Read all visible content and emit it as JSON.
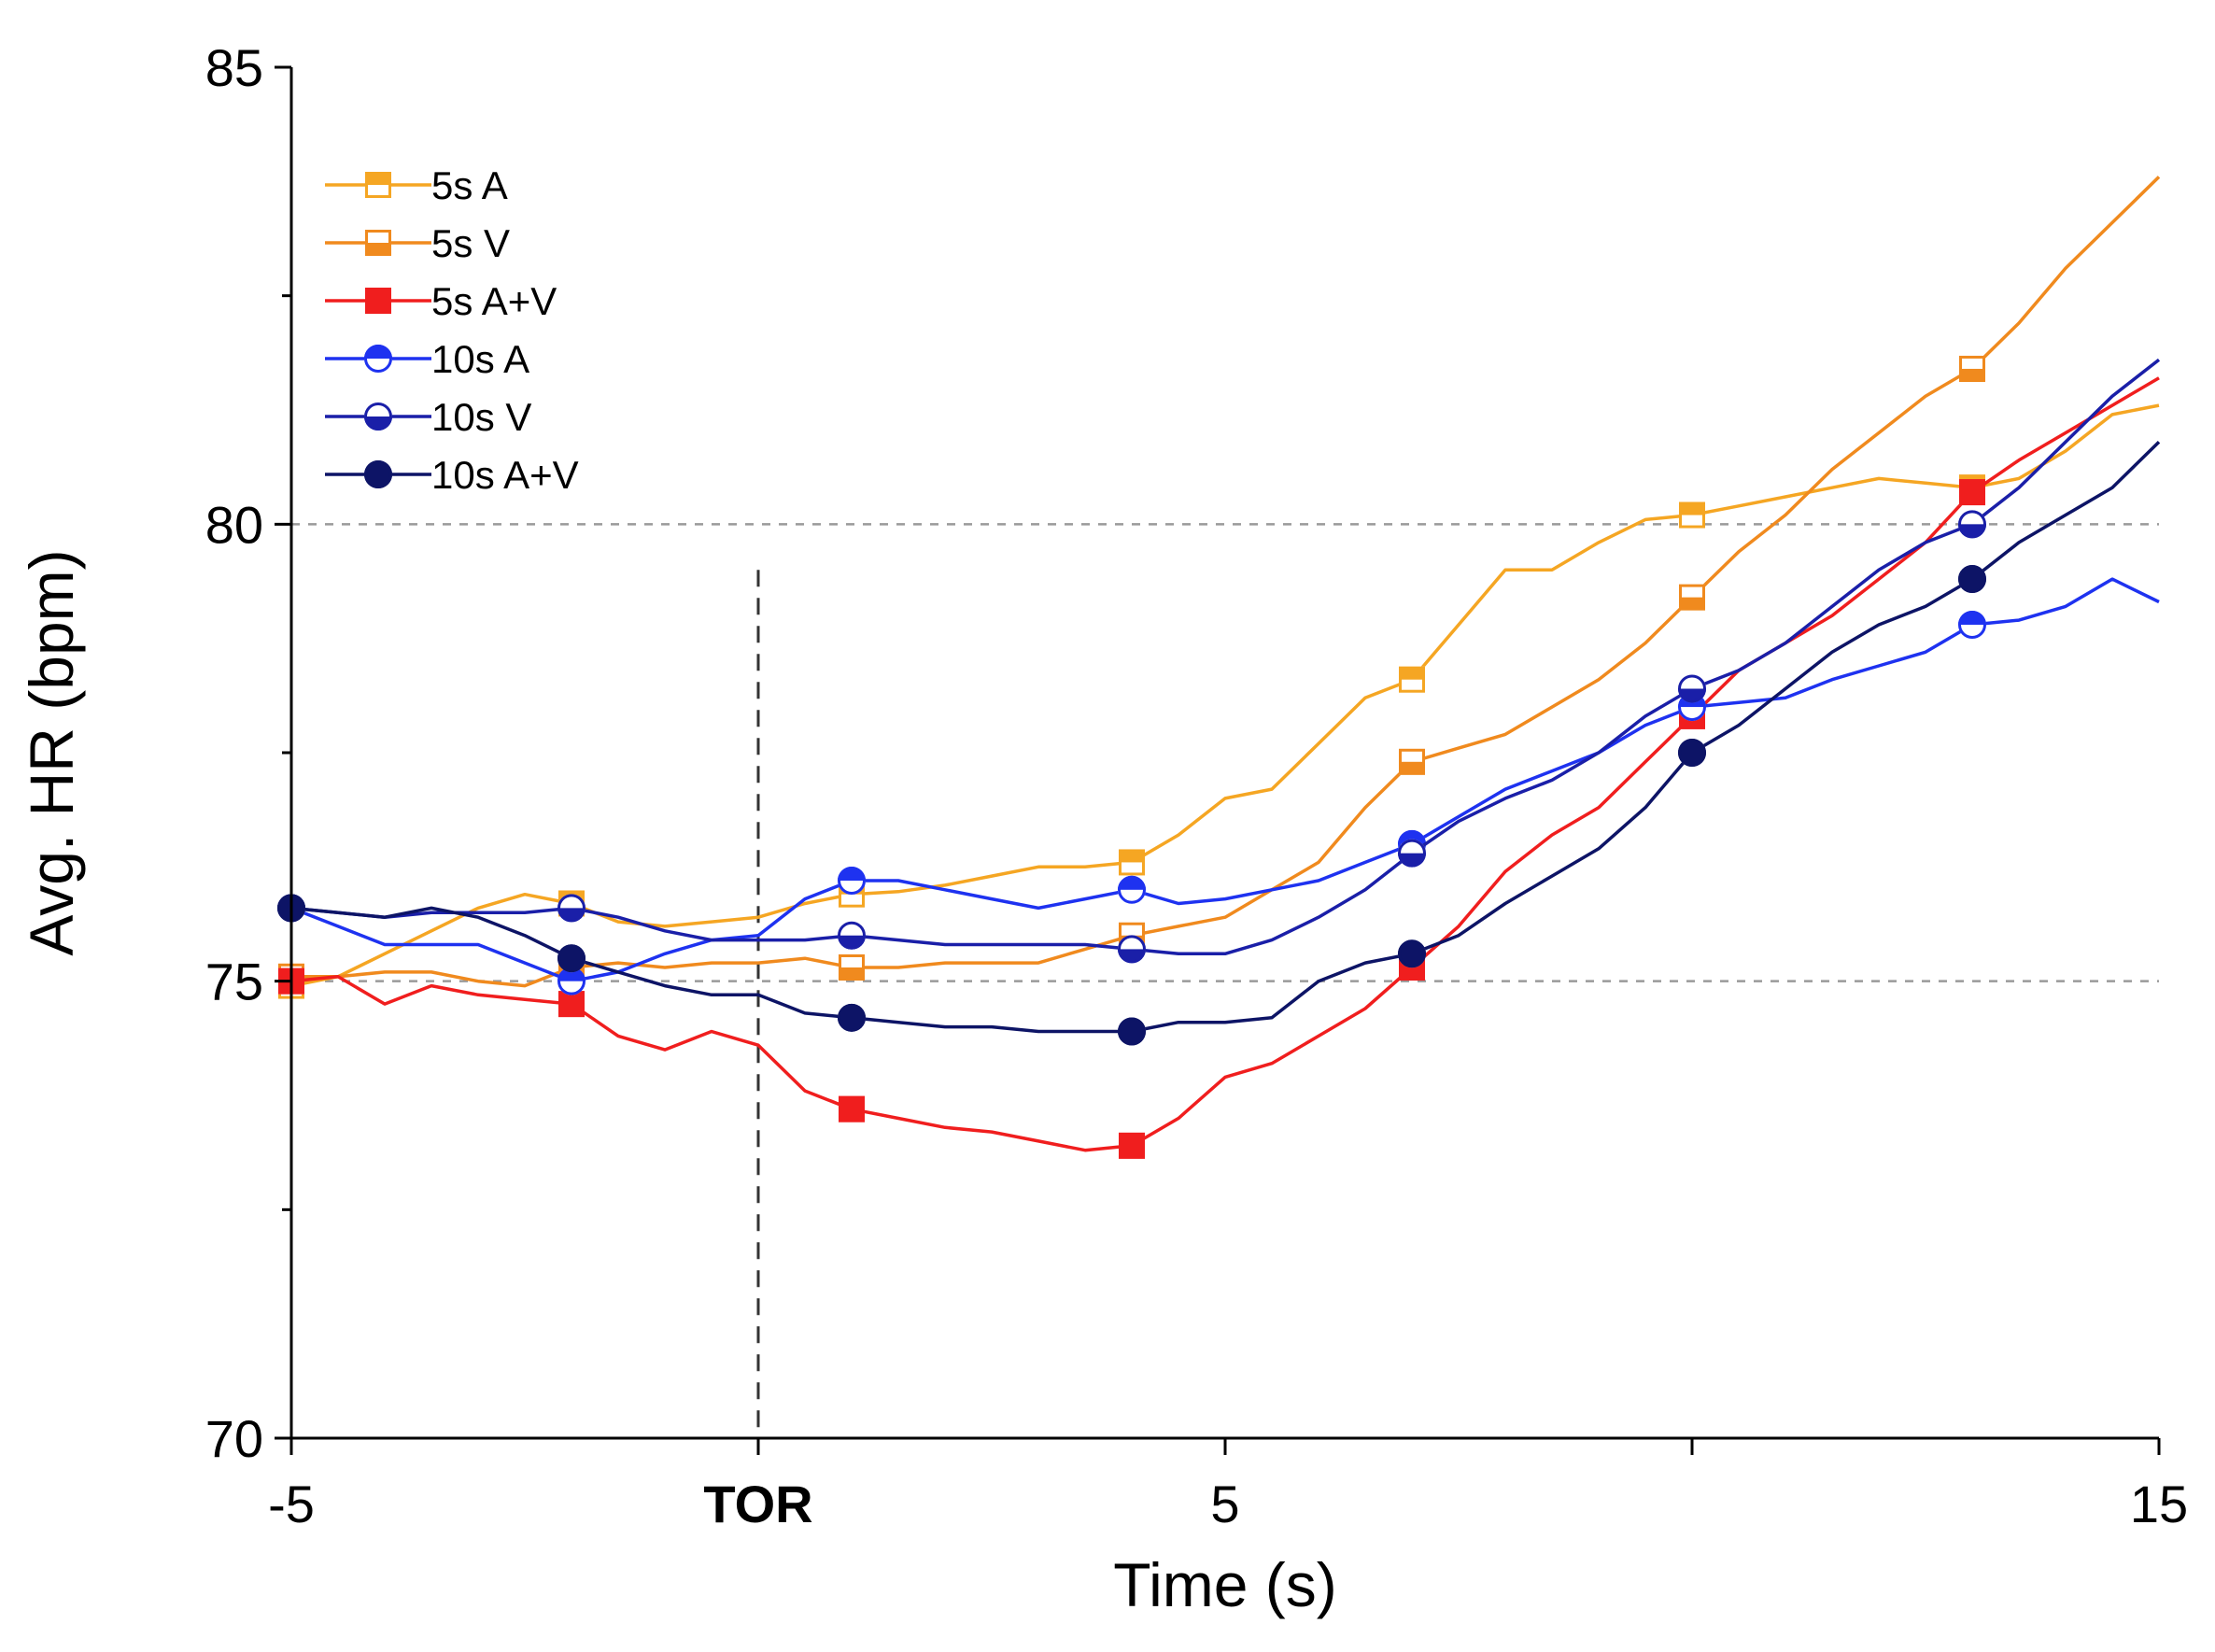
{
  "chart_data": {
    "type": "line",
    "xlabel": "Time (s)",
    "ylabel": "Avg. HR (bpm)",
    "xlim": [
      -5,
      15
    ],
    "ylim": [
      70,
      85
    ],
    "x_ticks": [
      {
        "value": -5,
        "label": "-5",
        "bold": false
      },
      {
        "value": 0,
        "label": "TOR",
        "bold": true
      },
      {
        "value": 5,
        "label": "5",
        "bold": false
      },
      {
        "value": 15,
        "label": "15",
        "bold": false
      }
    ],
    "x_minor_ticks": [
      10
    ],
    "y_ticks": [
      {
        "value": 70,
        "label": "70"
      },
      {
        "value": 75,
        "label": "75"
      },
      {
        "value": 80,
        "label": "80"
      },
      {
        "value": 85,
        "label": "85"
      }
    ],
    "y_minor_ticks": [
      72.5,
      77.5,
      82.5
    ],
    "reference_lines": {
      "horizontal": [
        75,
        80
      ],
      "vertical": [
        0
      ],
      "vertical_top": 79.5
    },
    "legend_position": "top-left",
    "series": [
      {
        "name": "5s A",
        "color": "#F5A623",
        "marker": "square",
        "fill": "top-half",
        "x": [
          -5,
          -4.5,
          -4,
          -3.5,
          -3,
          -2.5,
          -2,
          -1.5,
          -1,
          -0.5,
          0,
          0.5,
          1,
          1.5,
          2,
          2.5,
          3,
          3.5,
          4,
          4.5,
          5,
          5.5,
          6,
          6.5,
          7,
          7.5,
          8,
          8.5,
          9,
          9.5,
          10,
          10.5,
          11,
          11.5,
          12,
          12.5,
          13,
          13.5,
          14,
          14.5,
          15
        ],
        "y": [
          74.95,
          75.05,
          75.3,
          75.55,
          75.8,
          75.95,
          75.85,
          75.65,
          75.6,
          75.65,
          75.7,
          75.85,
          75.95,
          75.98,
          76.05,
          76.15,
          76.25,
          76.25,
          76.3,
          76.6,
          77.0,
          77.1,
          77.6,
          78.1,
          78.3,
          78.9,
          79.5,
          79.5,
          79.8,
          80.05,
          80.1,
          80.2,
          80.3,
          80.4,
          80.5,
          80.45,
          80.4,
          80.5,
          80.8,
          81.2,
          81.3
        ],
        "marker_x": [
          -5,
          -2,
          1,
          4,
          7,
          10,
          13
        ]
      },
      {
        "name": "5s V",
        "color": "#F08A1E",
        "marker": "square",
        "fill": "bottom-half",
        "x": [
          -5,
          -4.5,
          -4,
          -3.5,
          -3,
          -2.5,
          -2,
          -1.5,
          -1,
          -0.5,
          0,
          0.5,
          1,
          1.5,
          2,
          2.5,
          3,
          3.5,
          4,
          4.5,
          5,
          5.5,
          6,
          6.5,
          7,
          7.5,
          8,
          8.5,
          9,
          9.5,
          10,
          10.5,
          11,
          11.5,
          12,
          12.5,
          13,
          13.5,
          14,
          14.5,
          15
        ],
        "y": [
          75.05,
          75.05,
          75.1,
          75.1,
          75.0,
          74.95,
          75.15,
          75.2,
          75.15,
          75.2,
          75.2,
          75.25,
          75.15,
          75.15,
          75.2,
          75.2,
          75.2,
          75.35,
          75.5,
          75.6,
          75.7,
          76.0,
          76.3,
          76.9,
          77.4,
          77.55,
          77.7,
          78.0,
          78.3,
          78.7,
          79.2,
          79.7,
          80.1,
          80.6,
          81.0,
          81.4,
          81.7,
          82.2,
          82.8,
          83.3,
          83.8
        ],
        "marker_x": [
          -5,
          -2,
          1,
          4,
          7,
          10,
          13
        ]
      },
      {
        "name": "5s A+V",
        "color": "#F01E1E",
        "marker": "square",
        "fill": "full",
        "x": [
          -5,
          -4.5,
          -4,
          -3.5,
          -3,
          -2.5,
          -2,
          -1.5,
          -1,
          -0.5,
          0,
          0.5,
          1,
          1.5,
          2,
          2.5,
          3,
          3.5,
          4,
          4.5,
          5,
          5.5,
          6,
          6.5,
          7,
          7.5,
          8,
          8.5,
          9,
          9.5,
          10,
          10.5,
          11,
          11.5,
          12,
          12.5,
          13,
          13.5,
          14,
          14.5,
          15
        ],
        "y": [
          75.0,
          75.05,
          74.75,
          74.95,
          74.85,
          74.8,
          74.75,
          74.4,
          74.25,
          74.45,
          74.3,
          73.8,
          73.6,
          73.5,
          73.4,
          73.35,
          73.25,
          73.15,
          73.2,
          73.5,
          73.95,
          74.1,
          74.4,
          74.7,
          75.15,
          75.6,
          76.2,
          76.6,
          76.9,
          77.4,
          77.9,
          78.4,
          78.7,
          79.0,
          79.4,
          79.8,
          80.35,
          80.7,
          81.0,
          81.3,
          81.6
        ],
        "marker_x": [
          -5,
          -2,
          1,
          4,
          7,
          10,
          13
        ]
      },
      {
        "name": "10s A",
        "color": "#1E32F0",
        "marker": "circle",
        "fill": "top-half",
        "x": [
          -5,
          -4.5,
          -4,
          -3.5,
          -3,
          -2.5,
          -2,
          -1.5,
          -1,
          -0.5,
          0,
          0.5,
          1,
          1.5,
          2,
          2.5,
          3,
          3.5,
          4,
          4.5,
          5,
          5.5,
          6,
          6.5,
          7,
          7.5,
          8,
          8.5,
          9,
          9.5,
          10,
          10.5,
          11,
          11.5,
          12,
          12.5,
          13,
          13.5,
          14,
          14.5,
          15
        ],
        "y": [
          75.8,
          75.6,
          75.4,
          75.4,
          75.4,
          75.2,
          75.0,
          75.1,
          75.3,
          75.45,
          75.5,
          75.9,
          76.1,
          76.1,
          76.0,
          75.9,
          75.8,
          75.9,
          76.0,
          75.85,
          75.9,
          76.0,
          76.1,
          76.3,
          76.5,
          76.8,
          77.1,
          77.3,
          77.5,
          77.8,
          78.0,
          78.05,
          78.1,
          78.3,
          78.45,
          78.6,
          78.9,
          78.95,
          79.1,
          79.4,
          79.15
        ],
        "marker_x": [
          -5,
          -2,
          1,
          4,
          7,
          10,
          13
        ]
      },
      {
        "name": "10s V",
        "color": "#1A1FA8",
        "marker": "circle",
        "fill": "bottom-half",
        "x": [
          -5,
          -4.5,
          -4,
          -3.5,
          -3,
          -2.5,
          -2,
          -1.5,
          -1,
          -0.5,
          0,
          0.5,
          1,
          1.5,
          2,
          2.5,
          3,
          3.5,
          4,
          4.5,
          5,
          5.5,
          6,
          6.5,
          7,
          7.5,
          8,
          8.5,
          9,
          9.5,
          10,
          10.5,
          11,
          11.5,
          12,
          12.5,
          13,
          13.5,
          14,
          14.5,
          15
        ],
        "y": [
          75.8,
          75.75,
          75.7,
          75.75,
          75.75,
          75.75,
          75.8,
          75.7,
          75.55,
          75.45,
          75.45,
          75.45,
          75.5,
          75.45,
          75.4,
          75.4,
          75.4,
          75.4,
          75.35,
          75.3,
          75.3,
          75.45,
          75.7,
          76.0,
          76.4,
          76.75,
          77.0,
          77.2,
          77.5,
          77.9,
          78.2,
          78.4,
          78.7,
          79.1,
          79.5,
          79.8,
          80.0,
          80.4,
          80.9,
          81.4,
          81.8
        ],
        "marker_x": [
          -5,
          -2,
          1,
          4,
          7,
          10,
          13
        ]
      },
      {
        "name": "10s A+V",
        "color": "#0D1466",
        "marker": "circle",
        "fill": "full",
        "x": [
          -5,
          -4.5,
          -4,
          -3.5,
          -3,
          -2.5,
          -2,
          -1.5,
          -1,
          -0.5,
          0,
          0.5,
          1,
          1.5,
          2,
          2.5,
          3,
          3.5,
          4,
          4.5,
          5,
          5.5,
          6,
          6.5,
          7,
          7.5,
          8,
          8.5,
          9,
          9.5,
          10,
          10.5,
          11,
          11.5,
          12,
          12.5,
          13,
          13.5,
          14,
          14.5,
          15
        ],
        "y": [
          75.8,
          75.75,
          75.7,
          75.8,
          75.7,
          75.5,
          75.25,
          75.1,
          74.95,
          74.85,
          74.85,
          74.65,
          74.6,
          74.55,
          74.5,
          74.5,
          74.45,
          74.45,
          74.45,
          74.55,
          74.55,
          74.6,
          75.0,
          75.2,
          75.3,
          75.5,
          75.85,
          76.15,
          76.45,
          76.9,
          77.5,
          77.8,
          78.2,
          78.6,
          78.9,
          79.1,
          79.4,
          79.8,
          80.1,
          80.4,
          80.9
        ],
        "marker_x": [
          -5,
          -2,
          1,
          4,
          7,
          10,
          13
        ]
      }
    ]
  }
}
